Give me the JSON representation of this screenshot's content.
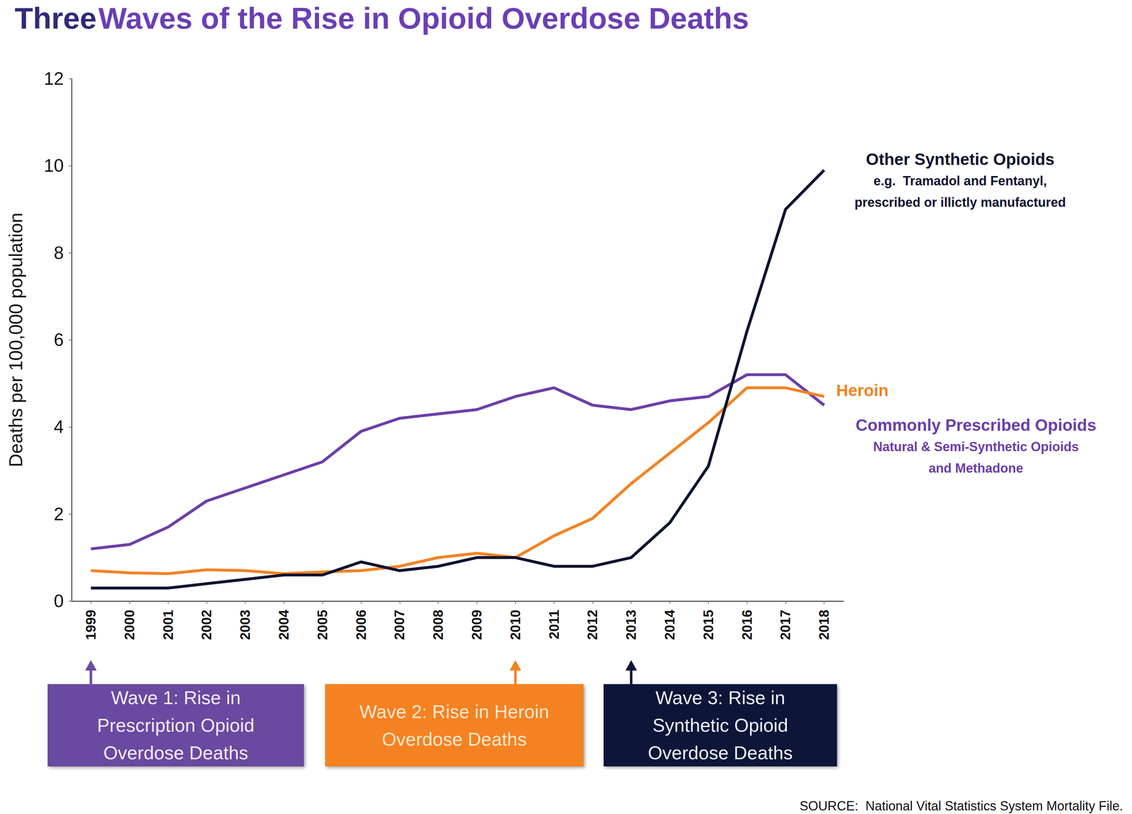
{
  "chart_data": {
    "type": "line",
    "title": "Three Waves of the Rise in Opioid Overdose Deaths",
    "y_label": "Deaths per 100,000 population",
    "categories": [
      "1999",
      "2000",
      "2001",
      "2002",
      "2003",
      "2004",
      "2005",
      "2006",
      "2007",
      "2008",
      "2009",
      "2010",
      "2011",
      "2012",
      "2013",
      "2014",
      "2015",
      "2016",
      "2017",
      "2018"
    ],
    "series": [
      {
        "name": "Commonly Prescribed Opioids",
        "description": [
          "Natural & Semi-Synthetic Opioids",
          "and Methadone"
        ],
        "color": "#6b3fa8",
        "values": [
          1.2,
          1.3,
          1.7,
          2.3,
          2.6,
          2.9,
          3.2,
          3.9,
          4.2,
          4.3,
          4.4,
          4.7,
          4.9,
          4.5,
          4.4,
          4.6,
          4.7,
          5.2,
          5.2,
          4.5
        ]
      },
      {
        "name": "Heroin",
        "description": [],
        "color": "#f28322",
        "values": [
          0.7,
          0.65,
          0.63,
          0.72,
          0.7,
          0.63,
          0.67,
          0.7,
          0.8,
          1.0,
          1.1,
          1.0,
          1.5,
          1.9,
          2.7,
          3.4,
          4.1,
          4.9,
          4.9,
          4.7
        ]
      },
      {
        "name": "Other Synthetic Opioids",
        "description": [
          "e.g.  Tramadol and Fentanyl,",
          "prescribed or illictly manufactured"
        ],
        "color": "#0e1330",
        "values": [
          0.3,
          0.3,
          0.3,
          0.4,
          0.5,
          0.6,
          0.6,
          0.9,
          0.7,
          0.8,
          1.0,
          1.0,
          0.8,
          0.8,
          1.0,
          1.8,
          3.1,
          6.2,
          9.0,
          9.9
        ]
      }
    ],
    "ylim": [
      0,
      12
    ],
    "yticks": [
      0,
      2,
      4,
      6,
      8,
      10,
      12
    ],
    "grid": false,
    "annotations": [
      {
        "text": [
          "Wave 1: Rise in",
          "Prescription Opioid",
          "Overdose Deaths"
        ],
        "year": "1999",
        "color": "#6b4aa0"
      },
      {
        "text": [
          "Wave 2: Rise in Heroin",
          "Overdose Deaths"
        ],
        "year": "2010",
        "color": "#f58220"
      },
      {
        "text": [
          "Wave 3: Rise in",
          "Synthetic Opioid",
          "Overdose Deaths"
        ],
        "year": "2013",
        "color": "#0f1538"
      }
    ],
    "source": "SOURCE:  National Vital Statistics System Mortality File."
  }
}
